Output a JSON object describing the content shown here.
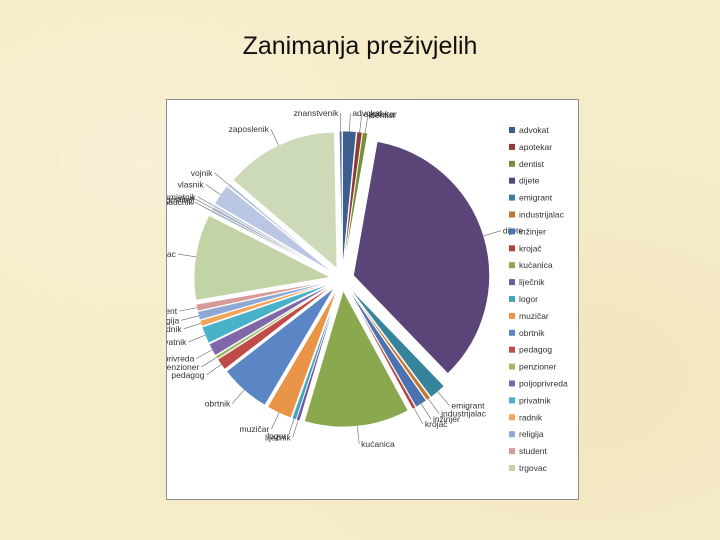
{
  "title": "Zanimanja preživjelih",
  "chart_data": {
    "type": "pie",
    "legend_position": "right",
    "categories": [
      "advokat",
      "apotekar",
      "dentist",
      "dijete",
      "emigrant",
      "industrijalac",
      "inžinjer",
      "krojač",
      "kućanica",
      "liječnik",
      "logor",
      "muzičar",
      "obrtnik",
      "pedagog",
      "penzioner",
      "poljoprivreda",
      "privatnik",
      "radnik",
      "religija",
      "student",
      "trgovac",
      "naučnik",
      "ugostitelj",
      "umjetnik",
      "vlasnik",
      "vojnik",
      "zaposlenik",
      "znanstvenik"
    ],
    "values": [
      1.6,
      0.6,
      0.6,
      35,
      2.0,
      0.5,
      1.4,
      0.4,
      12.5,
      0.4,
      0.5,
      3.0,
      6.0,
      1.4,
      0.4,
      1.5,
      2.0,
      0.7,
      1.0,
      0.8,
      10.2,
      0.3,
      0.3,
      0.3,
      2.5,
      0.3,
      13.5,
      0.3
    ],
    "colors": [
      "#3c5e8f",
      "#8f3a36",
      "#75903a",
      "#5a4478",
      "#36849b",
      "#c4762c",
      "#4c72b0",
      "#b5403e",
      "#8aa94f",
      "#7357a0",
      "#43a6c1",
      "#e99446",
      "#5b86c5",
      "#c04b48",
      "#9ebc63",
      "#7f67aa",
      "#4ab2c8",
      "#f2a55a",
      "#8fa8d6",
      "#d79a99",
      "#c2d3a5",
      "#a7b8c8",
      "#9ea8bd",
      "#b9c4d6",
      "#b9c7e4",
      "#aab9d0",
      "#ccdab7",
      "#4d6fa6"
    ],
    "legend": [
      "advokat",
      "apotekar",
      "dentist",
      "dijete",
      "emigrant",
      "industrijalac",
      "inžinjer",
      "krojač",
      "kućanica",
      "liječnik",
      "logor",
      "muzičar",
      "obrtnik",
      "pedagog",
      "penzioner",
      "poljoprivreda",
      "privatnik",
      "radnik",
      "religija",
      "student",
      "trgovac"
    ]
  }
}
